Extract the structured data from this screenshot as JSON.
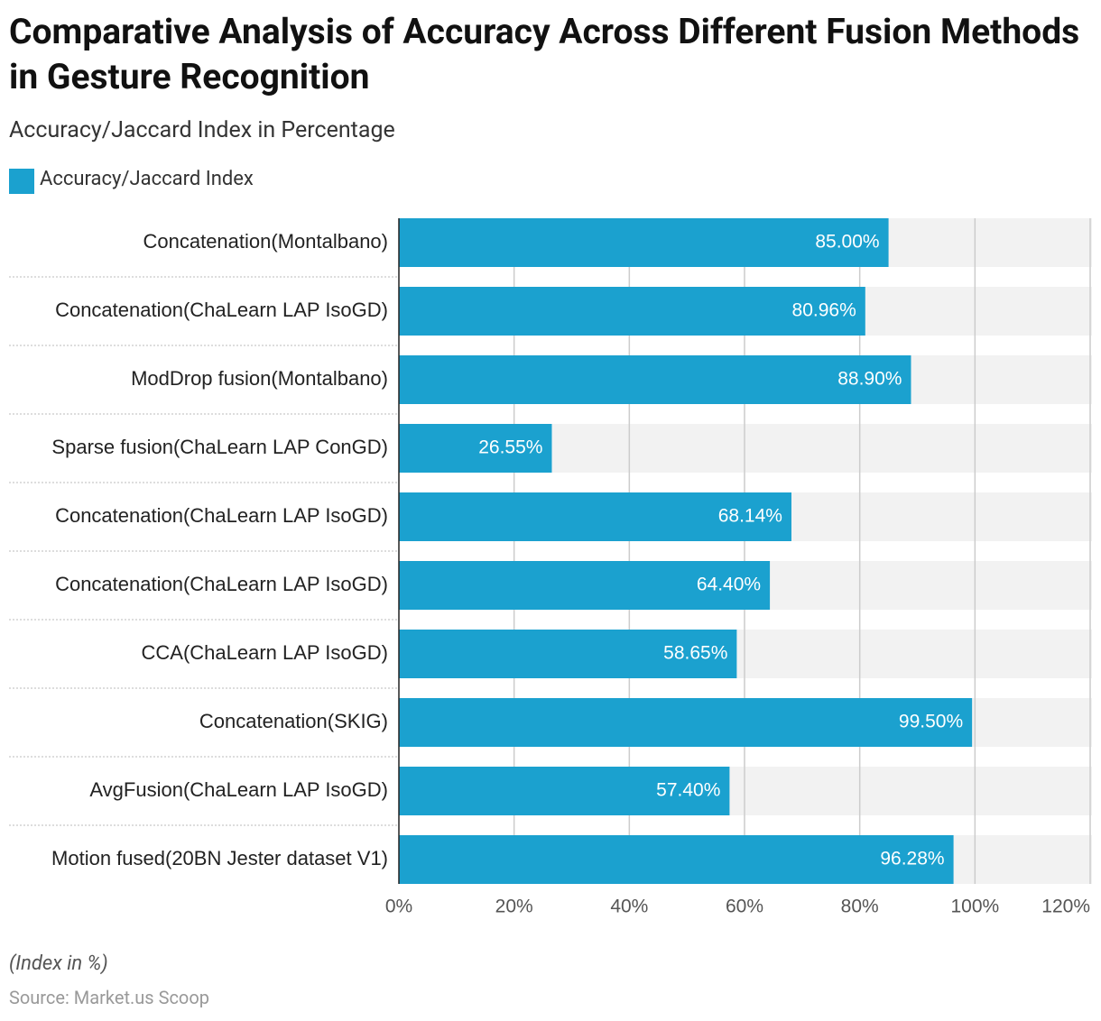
{
  "chart_data": {
    "type": "bar",
    "orientation": "horizontal",
    "title": "Comparative Analysis of Accuracy Across Different Fusion Methods in Gesture Recognition",
    "subtitle": "Accuracy/Jaccard Index in Percentage",
    "categories": [
      "Concatenation(Montalbano)",
      "Concatenation(ChaLearn LAP IsoGD)",
      "ModDrop fusion(Montalbano)",
      "Sparse fusion(ChaLearn LAP ConGD)",
      "Concatenation(ChaLearn LAP IsoGD)",
      "Concatenation(ChaLearn LAP IsoGD)",
      "CCA(ChaLearn LAP IsoGD)",
      "Concatenation(SKIG)",
      "AvgFusion(ChaLearn LAP IsoGD)",
      "Motion fused(20BN Jester dataset V1)"
    ],
    "series": [
      {
        "name": "Accuracy/Jaccard Index",
        "color": "#1ba1cf",
        "values": [
          85.0,
          80.96,
          88.9,
          26.55,
          68.14,
          64.4,
          58.65,
          99.5,
          57.4,
          96.28
        ],
        "value_labels": [
          "85.00%",
          "80.96%",
          "88.90%",
          "26.55%",
          "68.14%",
          "64.40%",
          "58.65%",
          "99.50%",
          "57.40%",
          "96.28%"
        ]
      }
    ],
    "xlim": [
      0,
      120
    ],
    "xticks": [
      {
        "value": 0,
        "label": "0%"
      },
      {
        "value": 20,
        "label": "20%"
      },
      {
        "value": 40,
        "label": "40%"
      },
      {
        "value": 60,
        "label": "60%"
      },
      {
        "value": 80,
        "label": "80%"
      },
      {
        "value": 100,
        "label": "100%"
      },
      {
        "value": 120,
        "label": "120%"
      }
    ],
    "grid": true,
    "legend": "top-left",
    "note": "(Index in %)",
    "source": "Source: Market.us Scoop"
  }
}
